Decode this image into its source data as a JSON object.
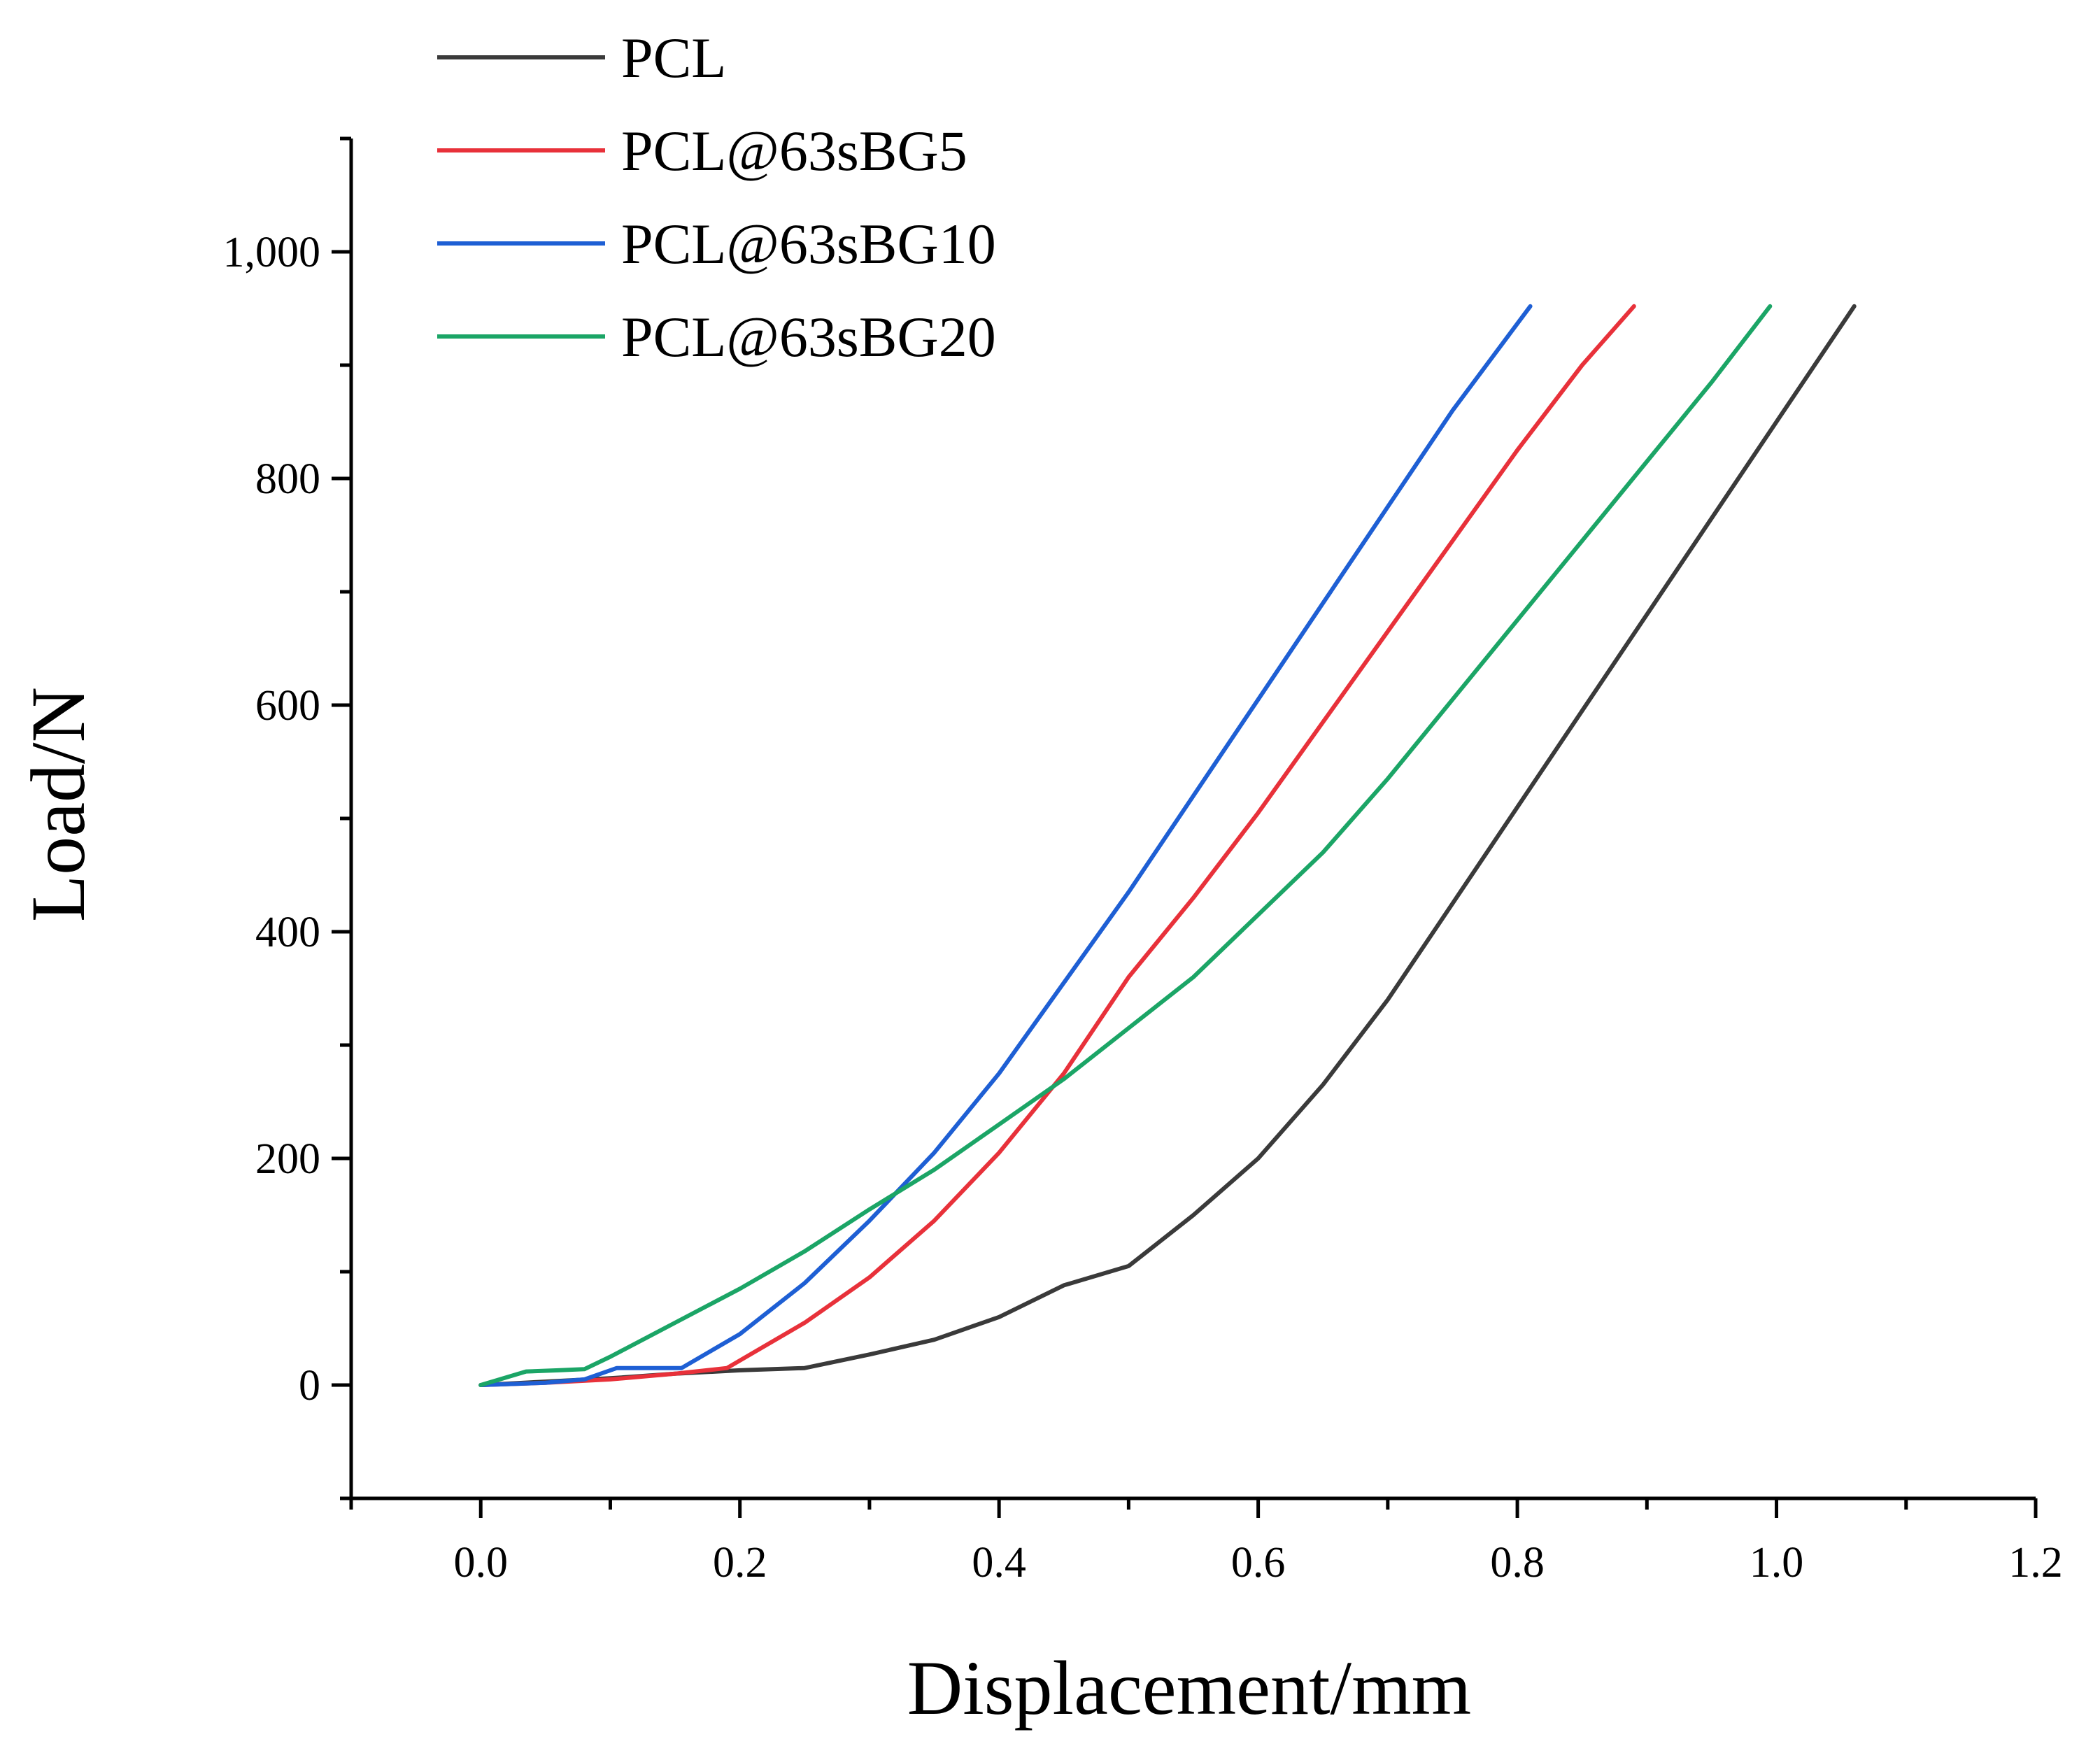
{
  "chart_data": {
    "type": "line",
    "title": "",
    "xlabel": "Displacement/mm",
    "ylabel": "Load/N",
    "xlim": [
      -0.1,
      1.2
    ],
    "ylim": [
      -100,
      1100
    ],
    "xticks": [
      0.0,
      0.2,
      0.4,
      0.6,
      0.8,
      1.0,
      1.2
    ],
    "xtick_labels": [
      "0.0",
      "0.2",
      "0.4",
      "0.6",
      "0.8",
      "1.0",
      "1.2"
    ],
    "yticks": [
      0,
      200,
      400,
      600,
      800,
      1000
    ],
    "ytick_labels": [
      "0",
      "200",
      "400",
      "600",
      "800",
      "1,000"
    ],
    "legend_position": "top-left",
    "grid": false,
    "series": [
      {
        "name": "PCL",
        "color": "#3a3a3a",
        "x": [
          0.0,
          0.05,
          0.1,
          0.15,
          0.2,
          0.25,
          0.3,
          0.35,
          0.4,
          0.45,
          0.5,
          0.55,
          0.6,
          0.65,
          0.7,
          0.75,
          0.8,
          0.85,
          0.9,
          0.95,
          1.0,
          1.06
        ],
        "y": [
          0,
          3,
          6,
          10,
          13,
          15,
          27,
          40,
          60,
          88,
          105,
          150,
          200,
          265,
          340,
          425,
          510,
          595,
          680,
          765,
          850,
          952
        ]
      },
      {
        "name": "PCL@63sBG5",
        "color": "#e8313a",
        "x": [
          0.0,
          0.05,
          0.1,
          0.15,
          0.19,
          0.25,
          0.3,
          0.35,
          0.4,
          0.45,
          0.5,
          0.55,
          0.6,
          0.65,
          0.7,
          0.75,
          0.8,
          0.85,
          0.89
        ],
        "y": [
          0,
          2,
          5,
          10,
          15,
          55,
          95,
          145,
          205,
          275,
          360,
          430,
          505,
          585,
          665,
          745,
          825,
          900,
          952
        ]
      },
      {
        "name": "PCL@63sBG10",
        "color": "#1e5fd4",
        "x": [
          0.0,
          0.05,
          0.08,
          0.105,
          0.12,
          0.155,
          0.2,
          0.25,
          0.3,
          0.35,
          0.4,
          0.45,
          0.5,
          0.55,
          0.6,
          0.65,
          0.7,
          0.75,
          0.81
        ],
        "y": [
          0,
          2,
          5,
          15,
          15,
          15,
          45,
          90,
          145,
          205,
          275,
          355,
          435,
          520,
          605,
          690,
          775,
          860,
          952
        ]
      },
      {
        "name": "PCL@63sBG20",
        "color": "#1ba566",
        "x": [
          0.0,
          0.035,
          0.06,
          0.08,
          0.1,
          0.15,
          0.2,
          0.25,
          0.3,
          0.35,
          0.4,
          0.45,
          0.5,
          0.55,
          0.6,
          0.65,
          0.7,
          0.75,
          0.8,
          0.85,
          0.9,
          0.95,
          0.995
        ],
        "y": [
          0,
          12,
          13,
          14,
          25,
          55,
          85,
          118,
          155,
          190,
          230,
          270,
          315,
          360,
          415,
          470,
          535,
          605,
          675,
          745,
          815,
          885,
          952
        ]
      }
    ]
  }
}
